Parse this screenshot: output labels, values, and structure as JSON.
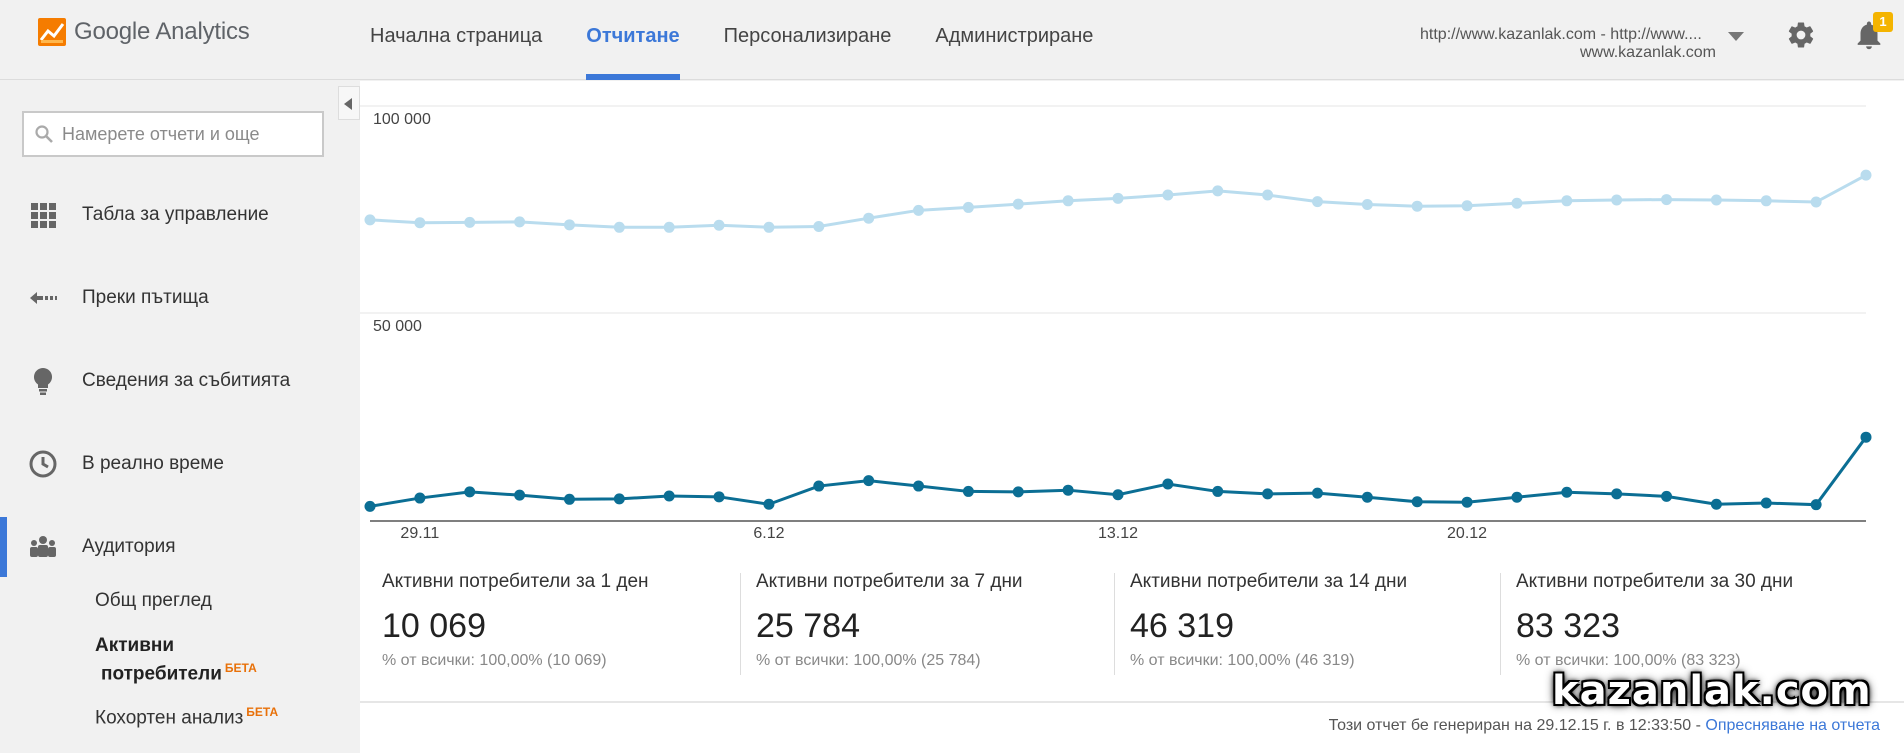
{
  "header": {
    "logo_text": "Google Analytics",
    "nav": [
      {
        "label": "Начална страница",
        "active": false
      },
      {
        "label": "Отчитане",
        "active": true
      },
      {
        "label": "Персонализиране",
        "active": false
      },
      {
        "label": "Администриране",
        "active": false
      }
    ],
    "account_line1": "http://www.kazanlak.com - http://www....",
    "account_line2": "www.kazanlak.com",
    "notification_count": "1"
  },
  "sidebar": {
    "search_placeholder": "Намерете отчети и още",
    "items": [
      {
        "label": "Табла за управление",
        "icon": "dashboard-icon"
      },
      {
        "label": "Преки пътища",
        "icon": "shortcuts-icon"
      },
      {
        "label": "Сведения за събитията",
        "icon": "lightbulb-icon"
      },
      {
        "label": "В реално време",
        "icon": "clock-icon"
      },
      {
        "label": "Аудитория",
        "icon": "audience-icon",
        "active": true
      }
    ],
    "sub_items": [
      {
        "label": "Общ преглед"
      },
      {
        "label_line1": "Активни",
        "label_line2": "потребители",
        "badge": "БЕТА"
      },
      {
        "label": "Кохортен анализ",
        "badge": "БЕТА"
      }
    ]
  },
  "chart_data": {
    "type": "line",
    "y_tick_labels": [
      "100 000",
      "50 000"
    ],
    "y_ticks": [
      100000,
      50000
    ],
    "ylim": [
      0,
      100000
    ],
    "x_tick_labels": [
      "29.11",
      "6.12",
      "13.12",
      "20.12"
    ],
    "x_tick_indices": [
      1,
      8,
      15,
      22
    ],
    "colors": {
      "light": "#b9dcee",
      "dark": "#0b6e94"
    },
    "series": [
      {
        "values": [
          72500,
          71800,
          71900,
          72000,
          71300,
          70700,
          70700,
          71200,
          70700,
          70900,
          72900,
          74800,
          75500,
          76300,
          77100,
          77700,
          78500,
          79500,
          78500,
          76900,
          76200,
          75800,
          75900,
          76500,
          77100,
          77300,
          77400,
          77300,
          77100,
          76800,
          83300
        ]
      },
      {
        "values": [
          3300,
          5300,
          6800,
          6000,
          5000,
          5100,
          5800,
          5600,
          3800,
          8200,
          9500,
          8200,
          6900,
          6800,
          7200,
          6100,
          8700,
          6900,
          6300,
          6500,
          5500,
          4400,
          4300,
          5500,
          6700,
          6300,
          5700,
          3800,
          4100,
          3700,
          20000
        ]
      }
    ]
  },
  "metrics": [
    {
      "title": "Активни потребители за 1 ден",
      "value": "10 069",
      "sub_prefix": "% от всички: ",
      "sub_value": "100,00% (10 069)"
    },
    {
      "title": "Активни потребители за 7 дни",
      "value": "25 784",
      "sub_prefix": "% от всички: ",
      "sub_value": "100,00% (25 784)"
    },
    {
      "title": "Активни потребители за 14 дни",
      "value": "46 319",
      "sub_prefix": "% от всички: ",
      "sub_value": "100,00% (46 319)"
    },
    {
      "title": "Активни потребители за 30 дни",
      "value": "83 323",
      "sub_prefix": "% от всички: ",
      "sub_value": "100,00% (83 323)"
    }
  ],
  "footer": {
    "text": "Този отчет бе генериран на 29.12.15 г. в 12:33:50 - ",
    "link": "Опресняване на отчета"
  },
  "watermark": "kazanlak.com"
}
